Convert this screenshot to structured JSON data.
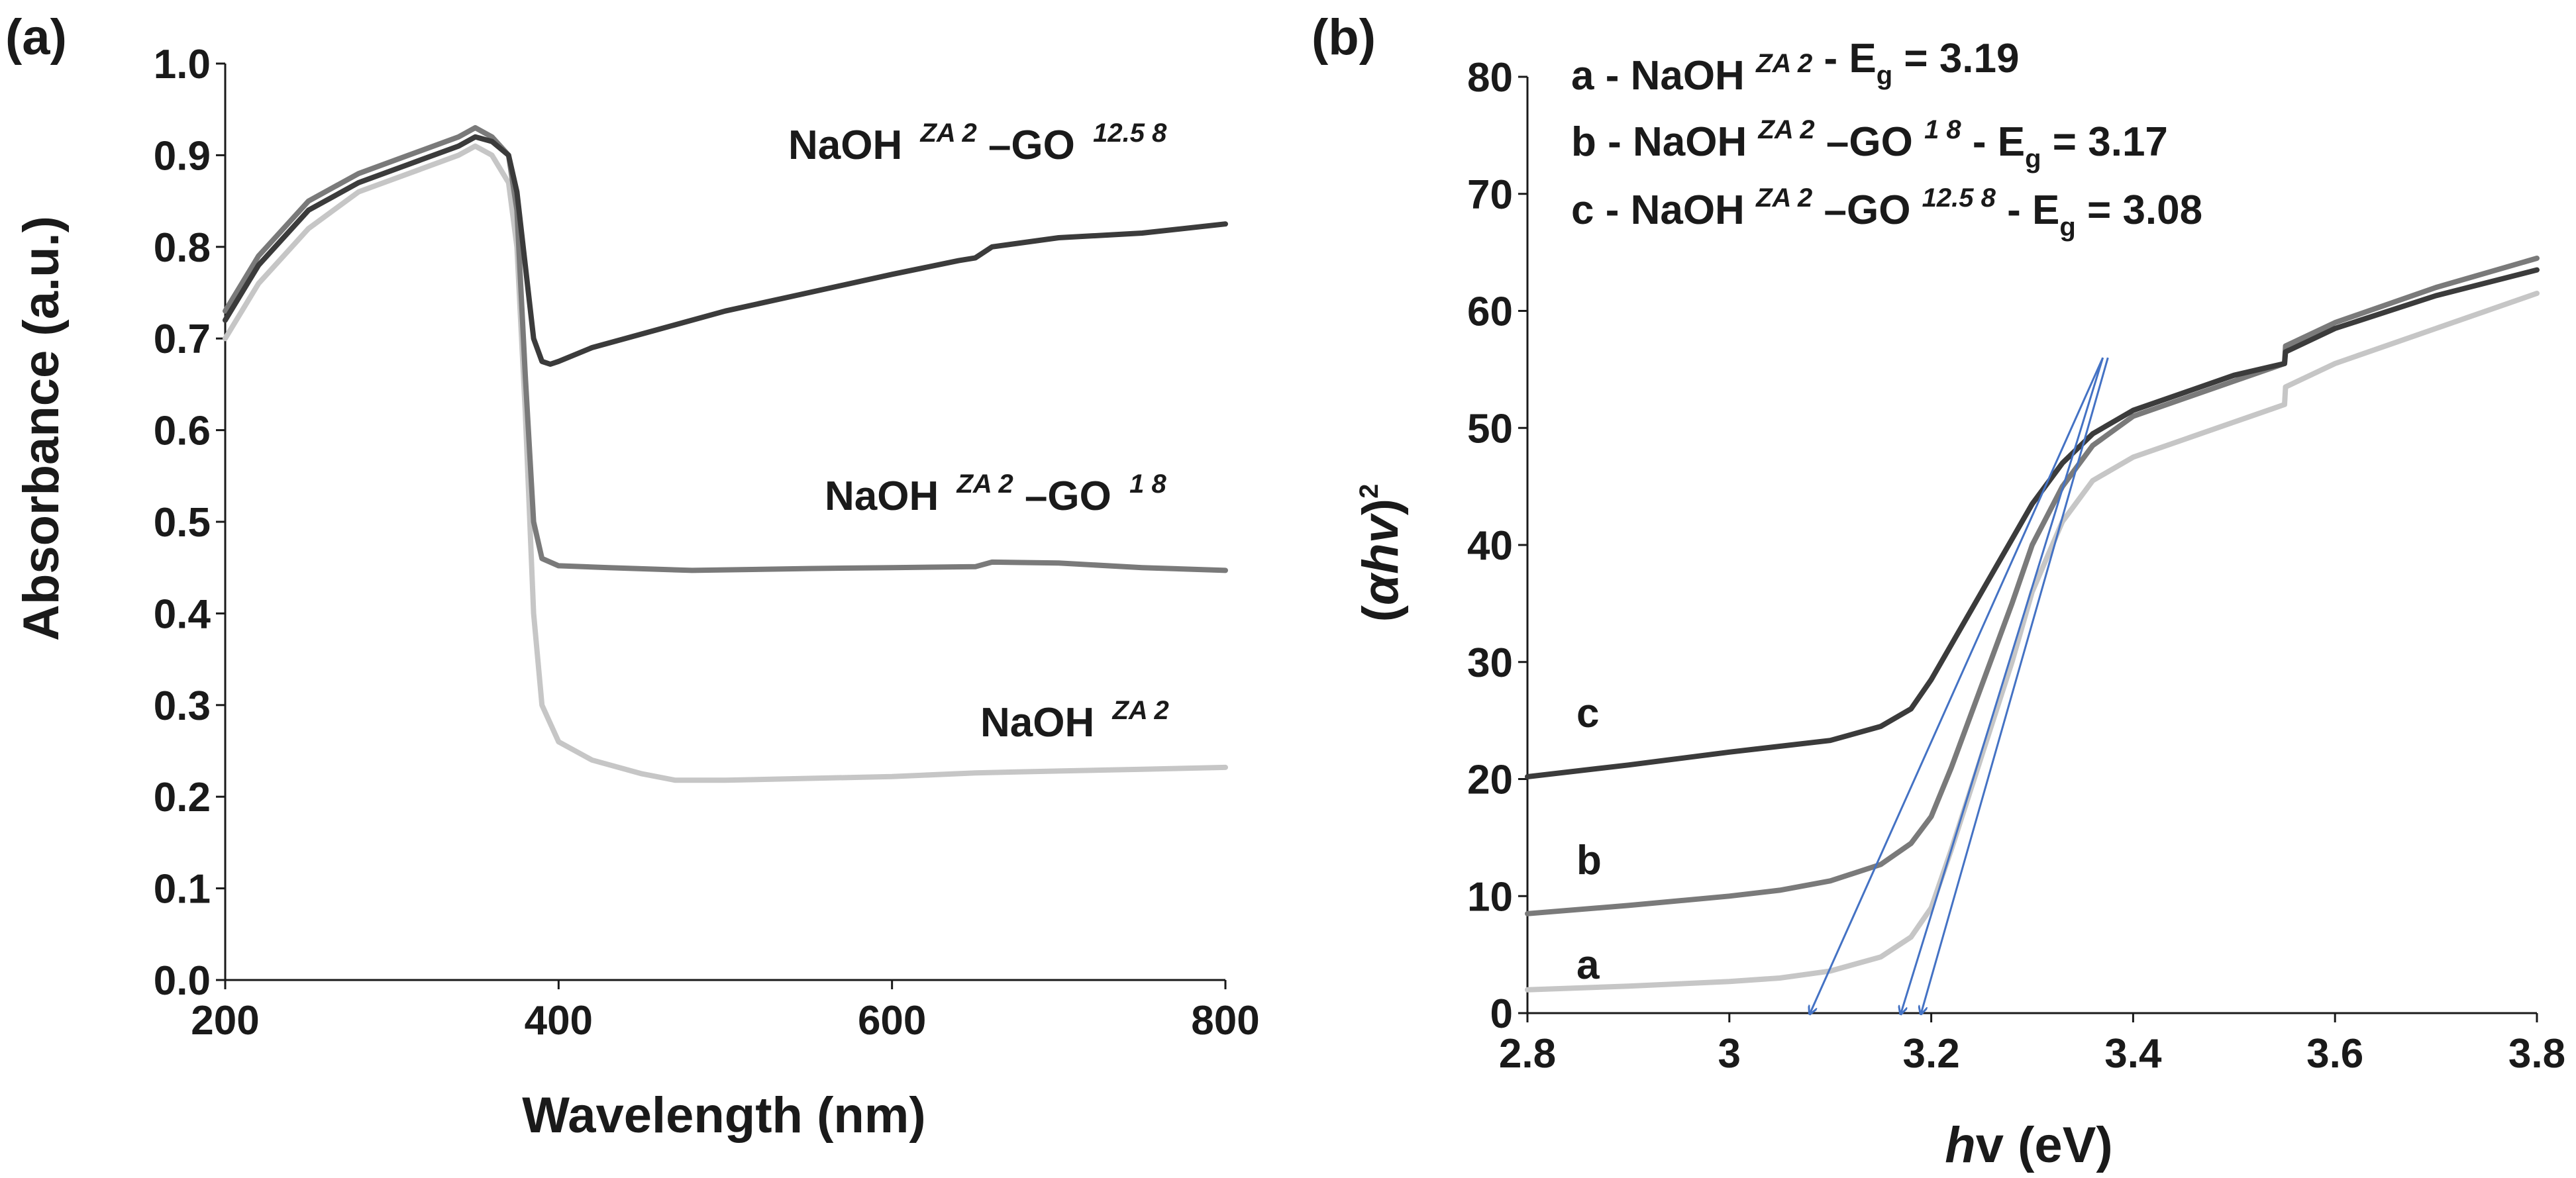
{
  "colors": {
    "NaOH_ZA2": "#c6c6c6",
    "NaOH_ZA2_GO18": "#7a7a7a",
    "NaOH_ZA2_GO12.58": "#3b3b3b",
    "tangent": "#4472c4",
    "axis": "#1a1a1a"
  },
  "panel_a": {
    "label": "(a)",
    "series_labels": {
      "s1_base": "NaOH",
      "s1_sup": "ZA 2",
      "s2_base": "NaOH",
      "s2_sup1": "ZA 2",
      "s2_dash": "–GO",
      "s2_sup2": "1 8",
      "s3_base": "NaOH",
      "s3_sup1": "ZA 2",
      "s3_dash": "–GO",
      "s3_sup2": "12.5 8"
    }
  },
  "panel_b": {
    "label": "(b)",
    "ylabel_parts": {
      "open": "(",
      "alpha": "α",
      "h": "h",
      "v": "v",
      "close": ")",
      "exp": "2"
    },
    "xlabel_parts": {
      "h": "h",
      "v": "v",
      "unit": " (eV)"
    },
    "curve_letters": {
      "a": "a",
      "b": "b",
      "c": "c"
    },
    "legend": [
      {
        "prefix": "a - NaOH ",
        "sup1": "ZA 2",
        "mid": "",
        "sup2": "",
        "eg_pre": " - E",
        "eg_sub": "g",
        "eg_val": " = 3.19"
      },
      {
        "prefix": "b - NaOH ",
        "sup1": "ZA 2",
        "mid": "–GO ",
        "sup2": "1 8",
        "eg_pre": " - E",
        "eg_sub": "g",
        "eg_val": " = 3.17"
      },
      {
        "prefix": "c - NaOH ",
        "sup1": "ZA 2",
        "mid": "–GO ",
        "sup2": "12.5 8",
        "eg_pre": " - E",
        "eg_sub": "g",
        "eg_val": " = 3.08"
      }
    ]
  },
  "chart_data": [
    {
      "type": "line",
      "title": "(a)",
      "xlabel": "Wavelength (nm)",
      "ylabel": "Absorbance (a.u.)",
      "xlim": [
        200,
        800
      ],
      "ylim": [
        0.0,
        1.0
      ],
      "xticks": [
        "200",
        "400",
        "600",
        "800"
      ],
      "xtick_values": [
        200,
        400,
        600,
        800
      ],
      "yticks": [
        "0.0",
        "0.1",
        "0.2",
        "0.3",
        "0.4",
        "0.5",
        "0.6",
        "0.7",
        "0.8",
        "0.9",
        "1.0"
      ],
      "ytick_values": [
        0.0,
        0.1,
        0.2,
        0.3,
        0.4,
        0.5,
        0.6,
        0.7,
        0.8,
        0.9,
        1.0
      ],
      "series": [
        {
          "name": "NaOH ZA 2",
          "color_key": "NaOH_ZA2",
          "x": [
            200,
            220,
            250,
            280,
            310,
            340,
            350,
            360,
            370,
            375,
            380,
            385,
            390,
            400,
            420,
            450,
            470,
            500,
            550,
            600,
            650,
            700,
            750,
            800
          ],
          "y": [
            0.7,
            0.76,
            0.82,
            0.86,
            0.88,
            0.9,
            0.91,
            0.9,
            0.87,
            0.8,
            0.62,
            0.4,
            0.3,
            0.26,
            0.24,
            0.225,
            0.218,
            0.218,
            0.22,
            0.222,
            0.226,
            0.228,
            0.23,
            0.232
          ]
        },
        {
          "name": "NaOH ZA 2–GO 1 8",
          "color_key": "NaOH_ZA2_GO18",
          "x": [
            200,
            220,
            250,
            280,
            310,
            340,
            350,
            360,
            370,
            375,
            380,
            385,
            390,
            400,
            430,
            480,
            550,
            600,
            650,
            660,
            700,
            750,
            800
          ],
          "y": [
            0.73,
            0.79,
            0.85,
            0.88,
            0.9,
            0.92,
            0.93,
            0.92,
            0.9,
            0.84,
            0.66,
            0.5,
            0.46,
            0.452,
            0.45,
            0.447,
            0.449,
            0.45,
            0.451,
            0.456,
            0.455,
            0.45,
            0.447
          ]
        },
        {
          "name": "NaOH ZA 2–GO 12.5 8",
          "color_key": "NaOH_ZA2_GO12.58",
          "x": [
            200,
            220,
            250,
            280,
            310,
            340,
            350,
            360,
            370,
            375,
            380,
            385,
            390,
            395,
            400,
            420,
            460,
            500,
            550,
            600,
            640,
            650,
            660,
            700,
            750,
            800
          ],
          "y": [
            0.72,
            0.78,
            0.84,
            0.87,
            0.89,
            0.91,
            0.92,
            0.915,
            0.9,
            0.86,
            0.78,
            0.7,
            0.675,
            0.672,
            0.675,
            0.69,
            0.71,
            0.73,
            0.75,
            0.77,
            0.785,
            0.788,
            0.8,
            0.81,
            0.815,
            0.825
          ]
        }
      ]
    },
    {
      "type": "line",
      "title": "(b)",
      "xlabel": "hv (eV)",
      "ylabel": "(αhv)2",
      "xlim": [
        2.8,
        3.8
      ],
      "ylim": [
        0,
        80
      ],
      "xticks": [
        "2.8",
        "3",
        "3.2",
        "3.4",
        "3.6",
        "3.8"
      ],
      "xtick_values": [
        2.8,
        3.0,
        3.2,
        3.4,
        3.6,
        3.8
      ],
      "yticks": [
        "0",
        "10",
        "20",
        "30",
        "40",
        "50",
        "60",
        "70",
        "80"
      ],
      "ytick_values": [
        0,
        10,
        20,
        30,
        40,
        50,
        60,
        70,
        80
      ],
      "series": [
        {
          "name": "a",
          "color_key": "NaOH_ZA2",
          "x": [
            2.8,
            2.9,
            3.0,
            3.05,
            3.1,
            3.15,
            3.18,
            3.2,
            3.22,
            3.25,
            3.28,
            3.3,
            3.33,
            3.36,
            3.4,
            3.5,
            3.55,
            3.551,
            3.6,
            3.7,
            3.8
          ],
          "y": [
            2.0,
            2.3,
            2.7,
            3.0,
            3.6,
            4.8,
            6.5,
            9.0,
            14.0,
            22.0,
            30.0,
            36.0,
            42.0,
            45.5,
            47.5,
            50.5,
            52.0,
            53.5,
            55.5,
            58.5,
            61.5
          ]
        },
        {
          "name": "b",
          "color_key": "NaOH_ZA2_GO18",
          "x": [
            2.8,
            2.9,
            3.0,
            3.05,
            3.1,
            3.15,
            3.18,
            3.2,
            3.22,
            3.25,
            3.28,
            3.3,
            3.33,
            3.36,
            3.4,
            3.5,
            3.55,
            3.551,
            3.6,
            3.7,
            3.8
          ],
          "y": [
            8.5,
            9.2,
            10.0,
            10.5,
            11.3,
            12.7,
            14.5,
            16.8,
            21.0,
            28.0,
            35.0,
            40.0,
            45.0,
            48.5,
            51.0,
            54.0,
            55.5,
            57.0,
            59.0,
            62.0,
            64.5
          ]
        },
        {
          "name": "c",
          "color_key": "NaOH_ZA2_GO12.58",
          "x": [
            2.8,
            2.9,
            3.0,
            3.05,
            3.1,
            3.15,
            3.18,
            3.2,
            3.22,
            3.25,
            3.28,
            3.3,
            3.33,
            3.36,
            3.4,
            3.5,
            3.55,
            3.551,
            3.6,
            3.7,
            3.8
          ],
          "y": [
            20.2,
            21.2,
            22.3,
            22.8,
            23.3,
            24.5,
            26.0,
            28.5,
            31.5,
            36.0,
            40.5,
            43.5,
            47.0,
            49.5,
            51.5,
            54.5,
            55.5,
            56.5,
            58.5,
            61.3,
            63.5
          ]
        }
      ],
      "tangent_lines": [
        {
          "name": "a",
          "x": [
            3.19,
            3.375
          ],
          "y": [
            0,
            56
          ]
        },
        {
          "name": "b",
          "x": [
            3.17,
            3.37
          ],
          "y": [
            0,
            56
          ]
        },
        {
          "name": "c",
          "x": [
            3.08,
            3.37
          ],
          "y": [
            0,
            56
          ]
        }
      ],
      "bandgaps_eV": {
        "a": 3.19,
        "b": 3.17,
        "c": 3.08
      }
    }
  ]
}
